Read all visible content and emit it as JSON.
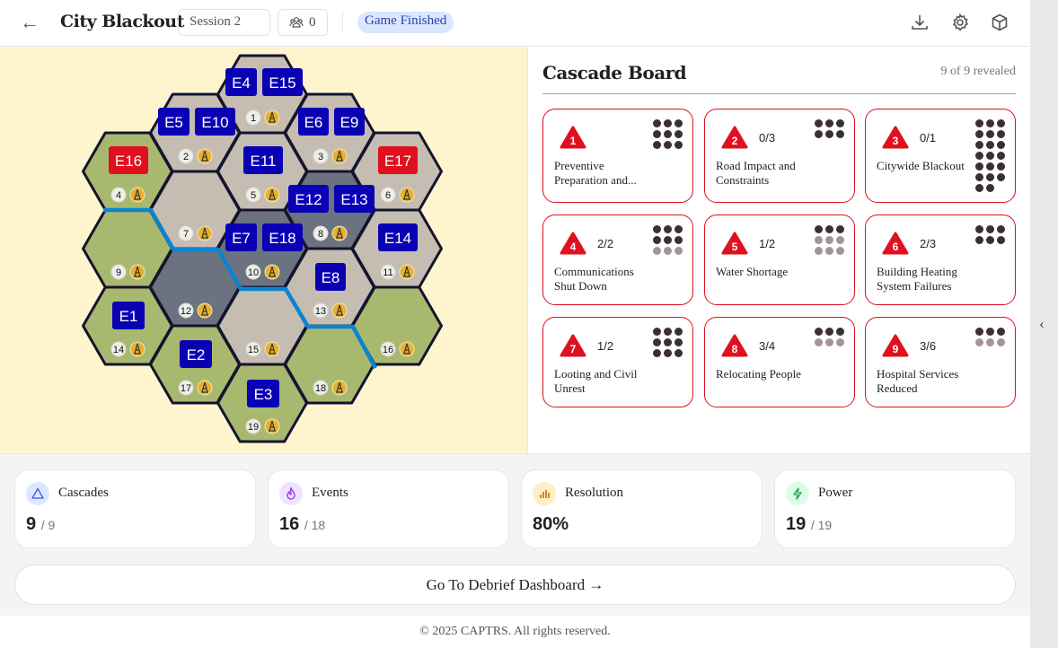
{
  "header": {
    "title": "City Blackout",
    "session": "Session 2",
    "players": "0",
    "status": "Game Finished"
  },
  "map": {
    "hexes": [
      {
        "id": "1",
        "terrain": "urban"
      },
      {
        "id": "2",
        "terrain": "urban"
      },
      {
        "id": "3",
        "terrain": "urban"
      },
      {
        "id": "4",
        "terrain": "green"
      },
      {
        "id": "5",
        "terrain": "urban"
      },
      {
        "id": "6",
        "terrain": "urban"
      },
      {
        "id": "7",
        "terrain": "urban"
      },
      {
        "id": "8",
        "terrain": "dark"
      },
      {
        "id": "9",
        "terrain": "green"
      },
      {
        "id": "10",
        "terrain": "dark"
      },
      {
        "id": "11",
        "terrain": "urban"
      },
      {
        "id": "12",
        "terrain": "dark"
      },
      {
        "id": "13",
        "terrain": "urban"
      },
      {
        "id": "14",
        "terrain": "green"
      },
      {
        "id": "15",
        "terrain": "urban"
      },
      {
        "id": "16",
        "terrain": "green"
      },
      {
        "id": "17",
        "terrain": "green"
      },
      {
        "id": "18",
        "terrain": "green"
      },
      {
        "id": "19",
        "terrain": "green"
      }
    ],
    "terrain_colors": {
      "urban": "#c5bdb1",
      "green": "#a9b86f",
      "dark": "#6b7280"
    },
    "tokens": [
      {
        "label": "E4",
        "color": "blue"
      },
      {
        "label": "E15",
        "color": "blue"
      },
      {
        "label": "E5",
        "color": "blue"
      },
      {
        "label": "E10",
        "color": "blue"
      },
      {
        "label": "E6",
        "color": "blue"
      },
      {
        "label": "E9",
        "color": "blue"
      },
      {
        "label": "E16",
        "color": "red"
      },
      {
        "label": "E11",
        "color": "blue"
      },
      {
        "label": "E17",
        "color": "red"
      },
      {
        "label": "E12",
        "color": "blue"
      },
      {
        "label": "E13",
        "color": "blue"
      },
      {
        "label": "E7",
        "color": "blue"
      },
      {
        "label": "E18",
        "color": "blue"
      },
      {
        "label": "E14",
        "color": "blue"
      },
      {
        "label": "E8",
        "color": "blue"
      },
      {
        "label": "E1",
        "color": "blue"
      },
      {
        "label": "E2",
        "color": "blue"
      },
      {
        "label": "E3",
        "color": "blue"
      }
    ],
    "token_colors": {
      "blue": "#0a00b4",
      "red": "#e0101f"
    },
    "river_color": "#0a84d0"
  },
  "cascade": {
    "title": "Cascade Board",
    "revealed": "9 of 9 revealed",
    "cards": [
      {
        "n": "1",
        "frac": "",
        "name": "Preventive Preparation and...",
        "dark": 9,
        "light": 0
      },
      {
        "n": "2",
        "frac": "0/3",
        "name": "Road Impact and Constraints",
        "dark": 6,
        "light": 0
      },
      {
        "n": "3",
        "frac": "0/1",
        "name": "Citywide Blackout",
        "dark": 20,
        "light": 0
      },
      {
        "n": "4",
        "frac": "2/2",
        "name": "Communications Shut Down",
        "dark": 6,
        "light": 3
      },
      {
        "n": "5",
        "frac": "1/2",
        "name": "Water Shortage",
        "dark": 3,
        "light": 6
      },
      {
        "n": "6",
        "frac": "2/3",
        "name": "Building Heating System Failures",
        "dark": 6,
        "light": 0
      },
      {
        "n": "7",
        "frac": "1/2",
        "name": "Looting and Civil Unrest",
        "dark": 9,
        "light": 0
      },
      {
        "n": "8",
        "frac": "3/4",
        "name": "Relocating People",
        "dark": 3,
        "light": 3
      },
      {
        "n": "9",
        "frac": "3/6",
        "name": "Hospital Services Reduced",
        "dark": 3,
        "light": 3
      }
    ]
  },
  "stats": [
    {
      "label": "Cascades",
      "value": "9",
      "total": "/ 9",
      "icon": "warning-triangle-icon",
      "bg": "#dbe7ff",
      "fg": "#3b5bdb"
    },
    {
      "label": "Events",
      "value": "16",
      "total": "/ 18",
      "icon": "flame-icon",
      "bg": "#f1e3ff",
      "fg": "#9333ea"
    },
    {
      "label": "Resolution",
      "value": "80%",
      "total": "",
      "icon": "bar-chart-icon",
      "bg": "#fdefc3",
      "fg": "#c2701a"
    },
    {
      "label": "Power",
      "value": "19",
      "total": "/ 19",
      "icon": "lightning-icon",
      "bg": "#dcfce7",
      "fg": "#16a34a"
    }
  ],
  "debrief_label": "Go To Debrief Dashboard →",
  "footer": "© 2025 CAPTRS. All rights reserved."
}
